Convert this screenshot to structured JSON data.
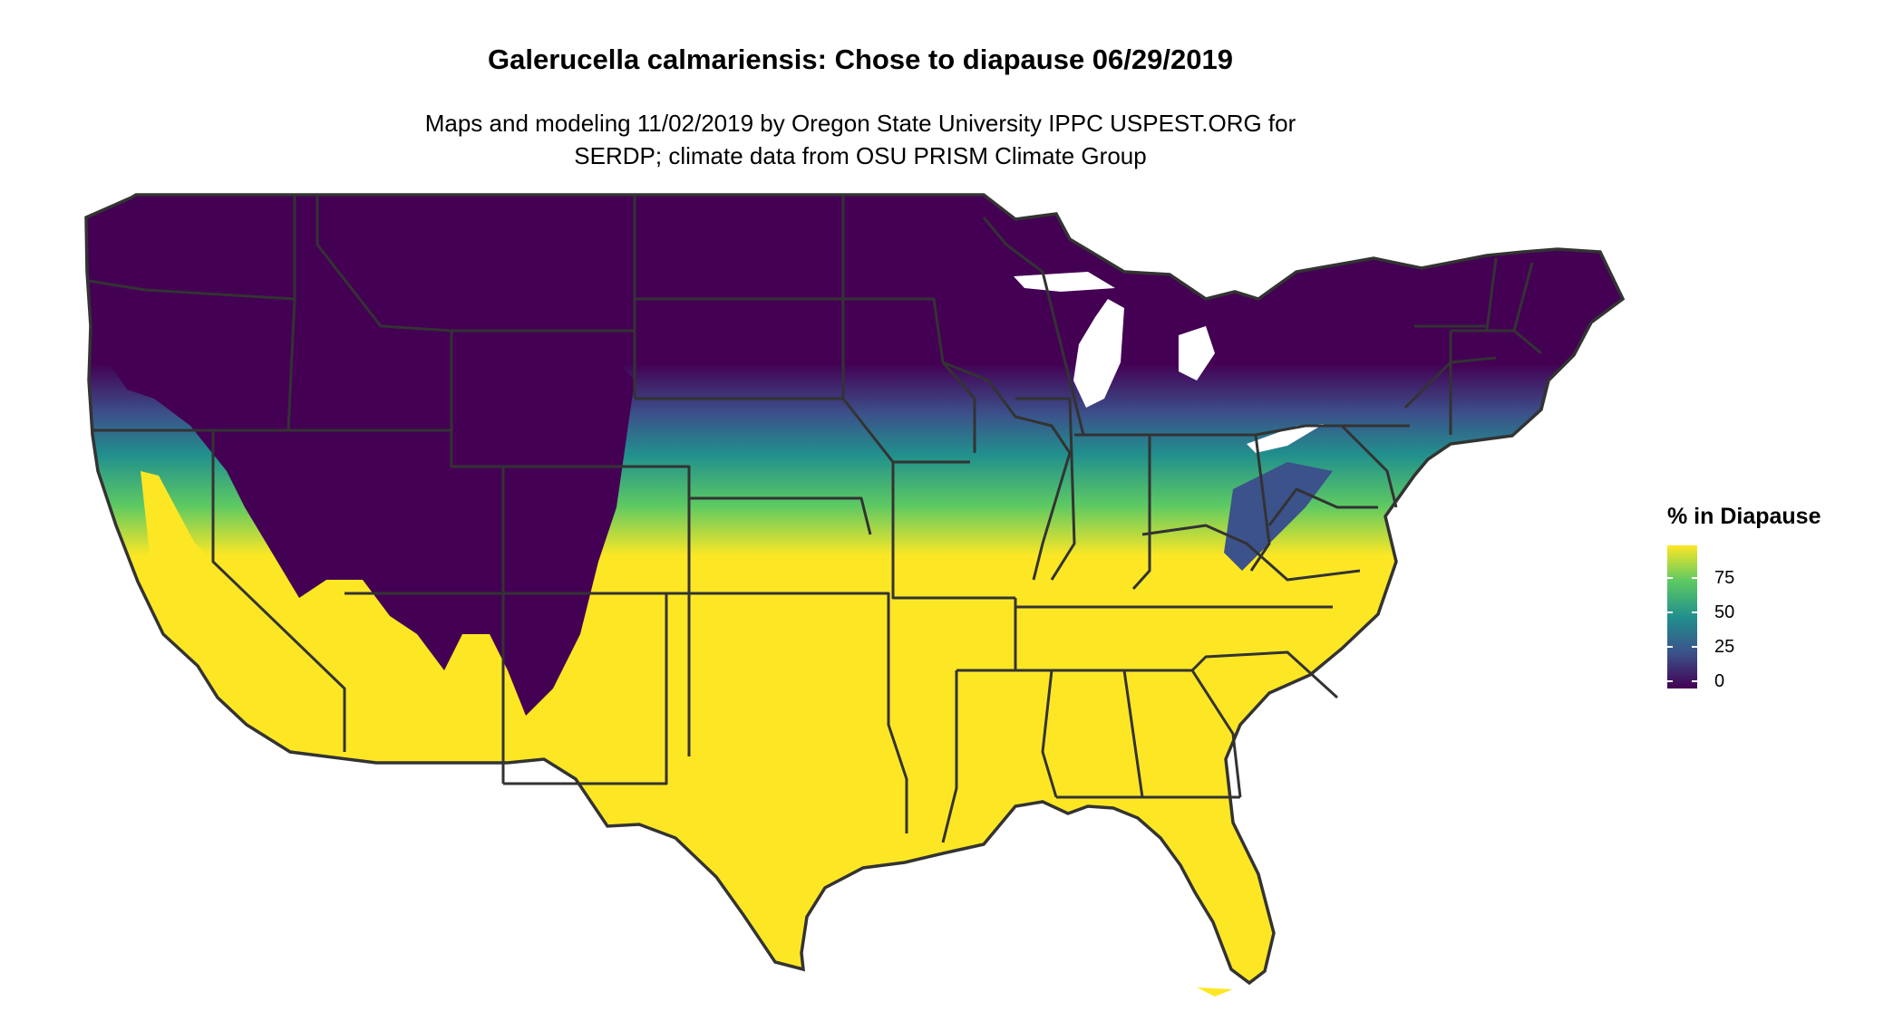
{
  "title": "Galerucella calmariensis: Chose to diapause 06/29/2019",
  "subtitle_lines": [
    "Maps and modeling 11/02/2019 by Oregon State University IPPC USPEST.ORG for",
    "SERDP; climate data from OSU PRISM Climate Group"
  ],
  "legend": {
    "title": "% in Diapause",
    "ticks": [
      "0",
      "25",
      "50",
      "75"
    ],
    "colors": [
      "#440154",
      "#3b528b",
      "#21908d",
      "#5dc963",
      "#fde725"
    ]
  },
  "map": {
    "region": "contiguous-united-states",
    "low_color": "#440154",
    "high_color": "#fde725",
    "border_color": "#333333",
    "background": "#ffffff"
  }
}
